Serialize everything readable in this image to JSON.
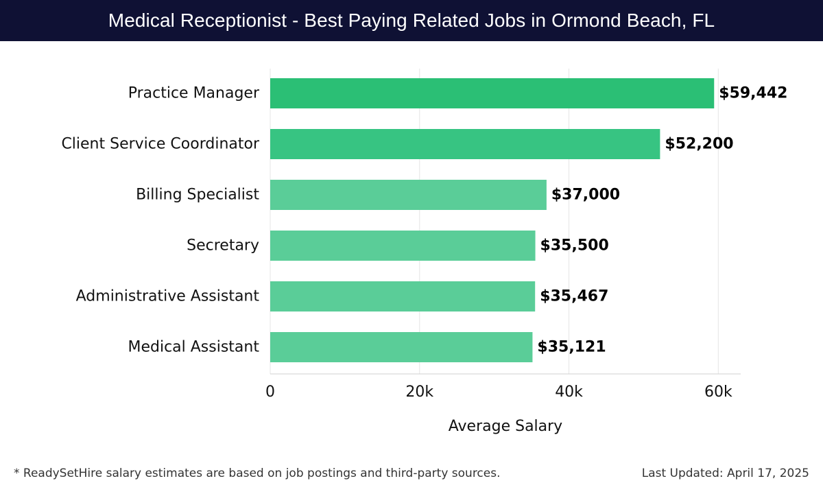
{
  "header": {
    "title": "Medical Receptionist - Best Paying Related Jobs in Ormond Beach, FL"
  },
  "footer": {
    "note": "* ReadySetHire salary estimates are based on job postings and third-party sources.",
    "updated": "Last Updated: April 17, 2025"
  },
  "colors": {
    "header_bg": "#0f1134",
    "bar_dark": "#2bbf75",
    "bar_mid": "#37c482",
    "bar_light": "#5acd98",
    "grid": "#e5e5e5"
  },
  "chart_data": {
    "type": "bar",
    "orientation": "horizontal",
    "title": "",
    "xlabel": "Average Salary",
    "ylabel": "",
    "xlim": [
      0,
      63000
    ],
    "grid": true,
    "xticks": [
      0,
      20000,
      40000,
      60000
    ],
    "xtick_labels": [
      "0",
      "20k",
      "40k",
      "60k"
    ],
    "categories": [
      "Practice Manager",
      "Client Service Coordinator",
      "Billing Specialist",
      "Secretary",
      "Administrative Assistant",
      "Medical Assistant"
    ],
    "values": [
      59442,
      52200,
      37000,
      35500,
      35467,
      35121
    ],
    "value_labels": [
      "$59,442",
      "$52,200",
      "$37,000",
      "$35,500",
      "$35,467",
      "$35,121"
    ],
    "bar_colors": [
      "#2bbf75",
      "#37c482",
      "#5acd98",
      "#5acd98",
      "#5acd98",
      "#5acd98"
    ]
  }
}
